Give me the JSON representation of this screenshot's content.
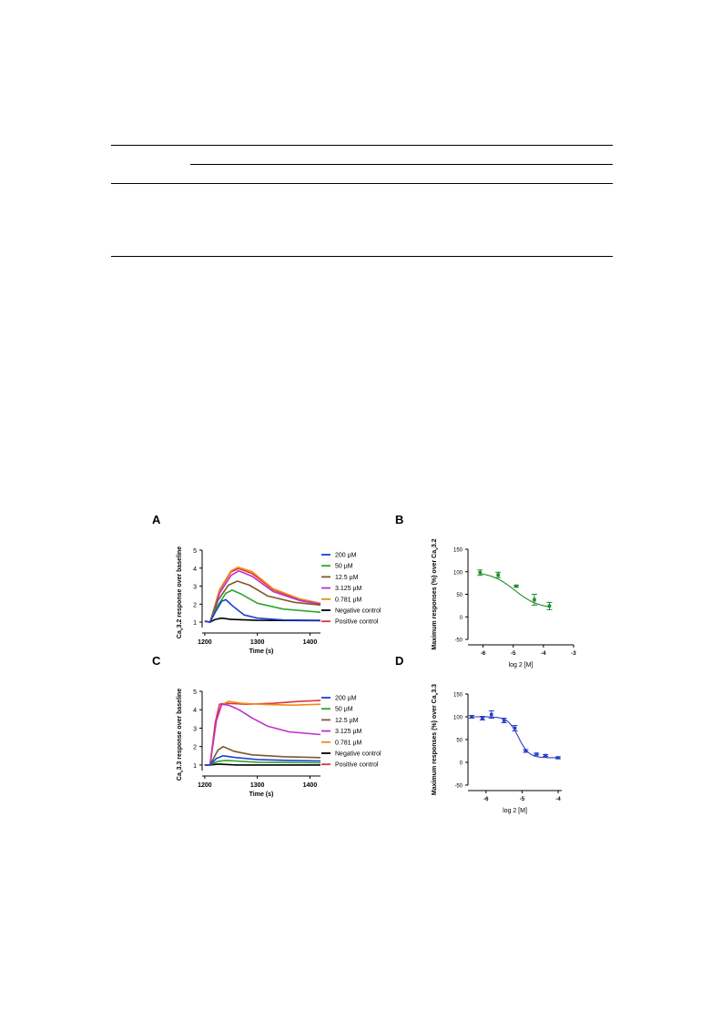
{
  "table": {
    "note": ""
  },
  "panels": {
    "A": "A",
    "B": "B",
    "C": "C",
    "D": "D"
  },
  "chart_data": [
    {
      "id": "A",
      "type": "line",
      "ylabel": "Ca<sub>v</sub>3.2 response over baseline",
      "ylabel_parts": [
        "Ca",
        "v",
        "3.2 response over baseline"
      ],
      "xlabel": "Time (s)",
      "xlim": [
        1195,
        1420
      ],
      "ylim": [
        0.7,
        5.0
      ],
      "xticks": [
        1200,
        1300,
        1400
      ],
      "yticks": [
        1,
        2,
        3,
        4,
        5
      ],
      "legend_position": "right",
      "series": [
        {
          "name": "200 µM",
          "color": "#1f3fdc",
          "points": [
            [
              1200,
              1.05
            ],
            [
              1210,
              1.0
            ],
            [
              1220,
              1.55
            ],
            [
              1232,
              2.15
            ],
            [
              1240,
              2.25
            ],
            [
              1255,
              1.85
            ],
            [
              1275,
              1.4
            ],
            [
              1300,
              1.22
            ],
            [
              1350,
              1.12
            ],
            [
              1420,
              1.1
            ]
          ]
        },
        {
          "name": "50 µM",
          "color": "#2aa82a",
          "points": [
            [
              1200,
              1.05
            ],
            [
              1210,
              1.0
            ],
            [
              1222,
              1.8
            ],
            [
              1240,
              2.6
            ],
            [
              1252,
              2.78
            ],
            [
              1270,
              2.55
            ],
            [
              1300,
              2.05
            ],
            [
              1350,
              1.72
            ],
            [
              1420,
              1.55
            ]
          ]
        },
        {
          "name": "12.5 µM",
          "color": "#7b5a2a",
          "points": [
            [
              1200,
              1.05
            ],
            [
              1210,
              1.0
            ],
            [
              1225,
              2.2
            ],
            [
              1245,
              3.05
            ],
            [
              1262,
              3.28
            ],
            [
              1285,
              3.05
            ],
            [
              1320,
              2.45
            ],
            [
              1370,
              2.1
            ],
            [
              1420,
              1.95
            ]
          ]
        },
        {
          "name": "3.125 µM",
          "color": "#c02ed0",
          "points": [
            [
              1200,
              1.05
            ],
            [
              1210,
              1.0
            ],
            [
              1228,
              2.6
            ],
            [
              1250,
              3.6
            ],
            [
              1265,
              3.85
            ],
            [
              1290,
              3.55
            ],
            [
              1330,
              2.7
            ],
            [
              1380,
              2.2
            ],
            [
              1420,
              2.0
            ]
          ]
        },
        {
          "name": "0.781 µM",
          "color": "#f08a1a",
          "points": [
            [
              1200,
              1.05
            ],
            [
              1210,
              1.0
            ],
            [
              1228,
              2.8
            ],
            [
              1250,
              3.85
            ],
            [
              1263,
              4.05
            ],
            [
              1290,
              3.8
            ],
            [
              1330,
              2.85
            ],
            [
              1380,
              2.3
            ],
            [
              1420,
              2.05
            ]
          ]
        },
        {
          "name": "Negative control",
          "color": "#000000",
          "points": [
            [
              1200,
              1.05
            ],
            [
              1210,
              1.0
            ],
            [
              1220,
              1.15
            ],
            [
              1232,
              1.22
            ],
            [
              1250,
              1.15
            ],
            [
              1300,
              1.1
            ],
            [
              1420,
              1.08
            ]
          ]
        },
        {
          "name": "Positive control",
          "color": "#e23434",
          "points": [
            [
              1200,
              1.05
            ],
            [
              1210,
              1.0
            ],
            [
              1228,
              2.75
            ],
            [
              1250,
              3.8
            ],
            [
              1265,
              3.98
            ],
            [
              1290,
              3.7
            ],
            [
              1330,
              2.8
            ],
            [
              1380,
              2.25
            ],
            [
              1420,
              2.0
            ]
          ]
        }
      ]
    },
    {
      "id": "B",
      "type": "scatter",
      "ylabel": "Maximum responses (%) over Ca<sub>v</sub>3.2",
      "ylabel_parts": [
        "Maximum responses (%) over Ca",
        "v",
        "3.2"
      ],
      "xlabel": "log 2 [M]",
      "xlim": [
        -6.5,
        -3
      ],
      "ylim": [
        -50,
        150
      ],
      "xticks": [
        -6,
        -5,
        -4,
        -3
      ],
      "yticks": [
        -50,
        0,
        50,
        100,
        150
      ],
      "color": "#1e8c2a",
      "points": [
        {
          "x": -6.1,
          "y": 98,
          "err": 6
        },
        {
          "x": -5.5,
          "y": 93,
          "err": 6
        },
        {
          "x": -4.9,
          "y": 68,
          "err": 2
        },
        {
          "x": -4.3,
          "y": 38,
          "err": 12
        },
        {
          "x": -3.8,
          "y": 24,
          "err": 8
        }
      ],
      "fit": {
        "top": 100,
        "bottom": 18,
        "logec50": -4.95,
        "hill": 1.1
      }
    },
    {
      "id": "C",
      "type": "line",
      "ylabel": "Ca<sub>v</sub>3.3 response over baseline",
      "ylabel_parts": [
        "Ca",
        "v",
        "3.3 response over baseline"
      ],
      "xlabel": "Time (s)",
      "xlim": [
        1195,
        1420
      ],
      "ylim": [
        0.7,
        5.0
      ],
      "xticks": [
        1200,
        1300,
        1400
      ],
      "yticks": [
        1,
        2,
        3,
        4,
        5
      ],
      "legend_position": "right",
      "series": [
        {
          "name": "200 µM",
          "color": "#1f3fdc",
          "points": [
            [
              1200,
              1.0
            ],
            [
              1210,
              1.0
            ],
            [
              1222,
              1.35
            ],
            [
              1235,
              1.5
            ],
            [
              1260,
              1.4
            ],
            [
              1300,
              1.3
            ],
            [
              1360,
              1.25
            ],
            [
              1420,
              1.22
            ]
          ]
        },
        {
          "name": "50 µM",
          "color": "#2aa82a",
          "points": [
            [
              1200,
              1.0
            ],
            [
              1210,
              1.0
            ],
            [
              1225,
              1.2
            ],
            [
              1240,
              1.25
            ],
            [
              1300,
              1.15
            ],
            [
              1420,
              1.12
            ]
          ]
        },
        {
          "name": "12.5 µM",
          "color": "#7b5a2a",
          "points": [
            [
              1200,
              1.0
            ],
            [
              1210,
              1.0
            ],
            [
              1225,
              1.8
            ],
            [
              1235,
              2.0
            ],
            [
              1255,
              1.75
            ],
            [
              1290,
              1.55
            ],
            [
              1350,
              1.45
            ],
            [
              1420,
              1.4
            ]
          ]
        },
        {
          "name": "3.125 µM",
          "color": "#c02ed0",
          "points": [
            [
              1200,
              1.0
            ],
            [
              1210,
              1.0
            ],
            [
              1222,
              3.4
            ],
            [
              1232,
              4.3
            ],
            [
              1245,
              4.25
            ],
            [
              1265,
              4.0
            ],
            [
              1290,
              3.55
            ],
            [
              1320,
              3.1
            ],
            [
              1360,
              2.8
            ],
            [
              1400,
              2.7
            ],
            [
              1420,
              2.65
            ]
          ]
        },
        {
          "name": "0.781 µM",
          "color": "#f08a1a",
          "points": [
            [
              1200,
              1.0
            ],
            [
              1210,
              1.0
            ],
            [
              1222,
              3.4
            ],
            [
              1232,
              4.25
            ],
            [
              1245,
              4.45
            ],
            [
              1270,
              4.35
            ],
            [
              1320,
              4.28
            ],
            [
              1370,
              4.25
            ],
            [
              1420,
              4.3
            ]
          ]
        },
        {
          "name": "Negative control",
          "color": "#000000",
          "points": [
            [
              1200,
              1.0
            ],
            [
              1210,
              1.0
            ],
            [
              1225,
              1.05
            ],
            [
              1260,
              1.0
            ],
            [
              1420,
              1.0
            ]
          ]
        },
        {
          "name": "Positive control",
          "color": "#e23434",
          "points": [
            [
              1200,
              1.0
            ],
            [
              1210,
              1.0
            ],
            [
              1220,
              3.3
            ],
            [
              1228,
              4.3
            ],
            [
              1240,
              4.35
            ],
            [
              1280,
              4.3
            ],
            [
              1330,
              4.35
            ],
            [
              1380,
              4.45
            ],
            [
              1420,
              4.5
            ]
          ]
        }
      ]
    },
    {
      "id": "D",
      "type": "scatter",
      "ylabel": "Maximum responses (%) over Ca<sub>v</sub>3.3",
      "ylabel_parts": [
        "Maximum responses (%) over Ca",
        "v",
        "3.3"
      ],
      "xlabel": "log 2 [M]",
      "xlim": [
        -6.5,
        -3.9
      ],
      "ylim": [
        -50,
        150
      ],
      "xticks": [
        -6,
        -5,
        -4
      ],
      "yticks": [
        -50,
        0,
        50,
        100,
        150
      ],
      "color": "#2b3fc8",
      "points": [
        {
          "x": -6.4,
          "y": 100,
          "err": 3
        },
        {
          "x": -6.1,
          "y": 97,
          "err": 4
        },
        {
          "x": -5.85,
          "y": 105,
          "err": 8
        },
        {
          "x": -5.5,
          "y": 92,
          "err": 5
        },
        {
          "x": -5.2,
          "y": 75,
          "err": 6
        },
        {
          "x": -4.9,
          "y": 25,
          "err": 3
        },
        {
          "x": -4.6,
          "y": 18,
          "err": 2
        },
        {
          "x": -4.35,
          "y": 15,
          "err": 2
        },
        {
          "x": -4.0,
          "y": 10,
          "err": 2
        }
      ],
      "fit": {
        "top": 100,
        "bottom": 10,
        "logec50": -5.1,
        "hill": 3.0
      }
    }
  ]
}
